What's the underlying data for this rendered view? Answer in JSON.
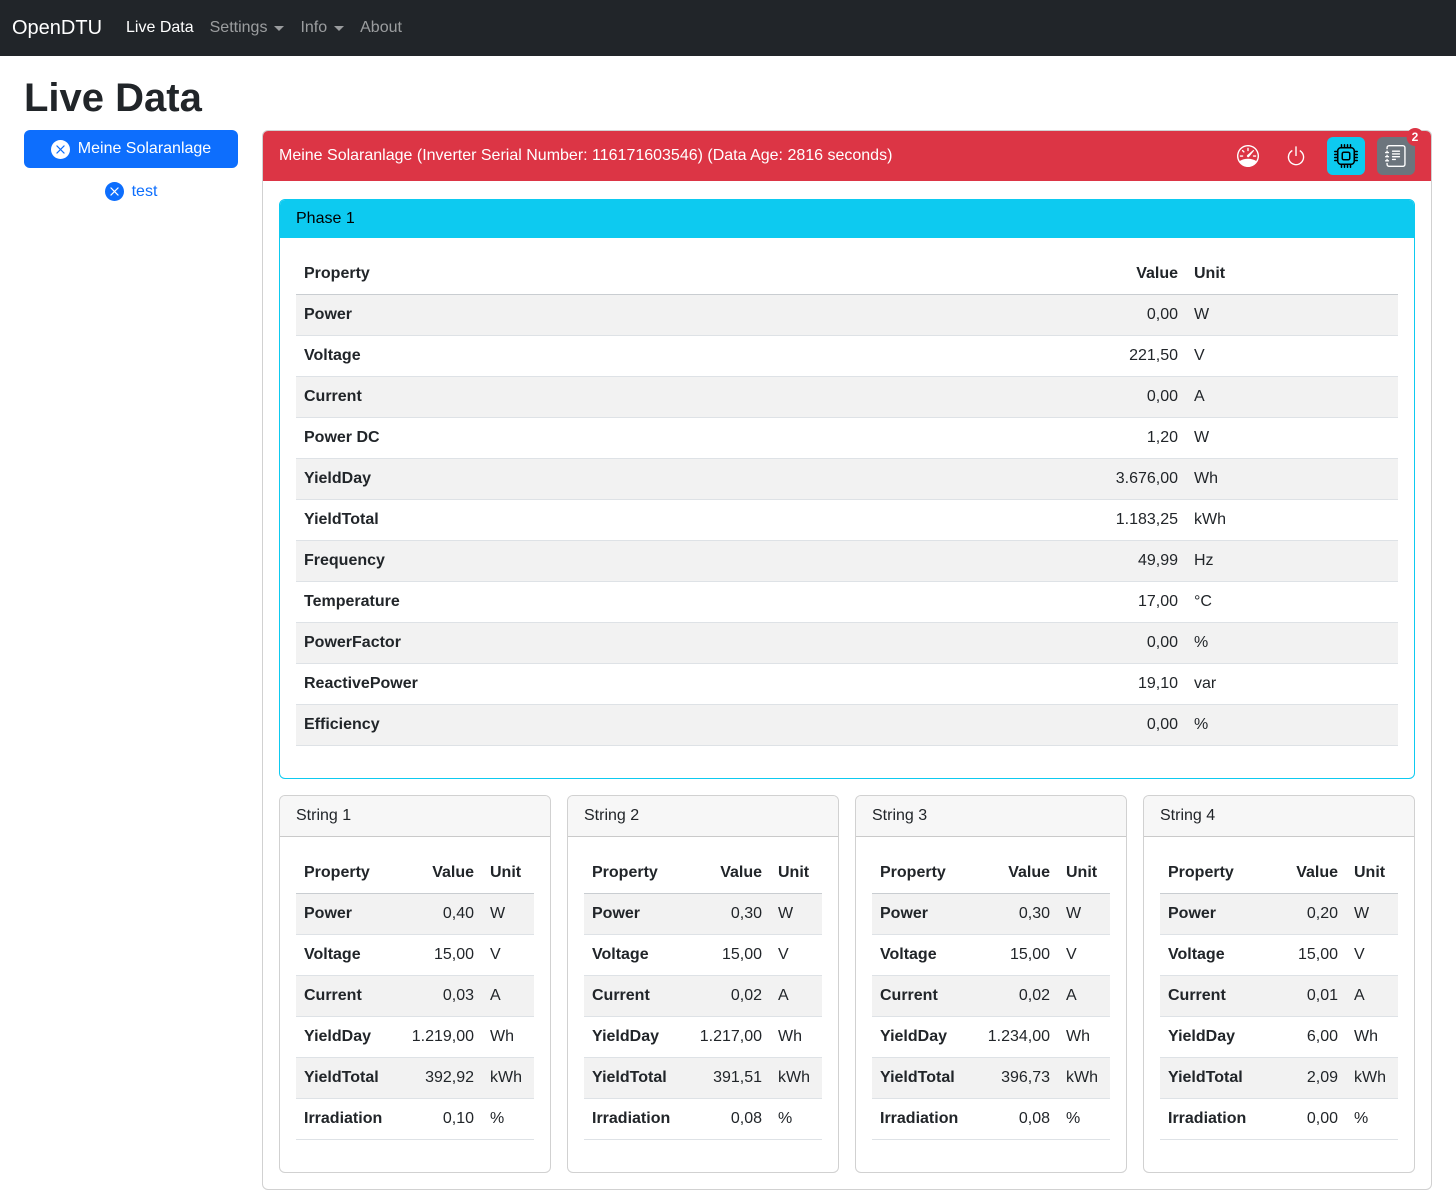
{
  "navbar": {
    "brand": "OpenDTU",
    "items": [
      {
        "label": "Live Data",
        "active": true,
        "dropdown": false
      },
      {
        "label": "Settings",
        "active": false,
        "dropdown": true
      },
      {
        "label": "Info",
        "active": false,
        "dropdown": true
      },
      {
        "label": "About",
        "active": false,
        "dropdown": false
      }
    ]
  },
  "page": {
    "title": "Live Data"
  },
  "inverter_selector": {
    "selected_label": "Meine Solaranlage",
    "other_label": "test"
  },
  "inverter": {
    "header": "Meine Solaranlage (Inverter Serial Number: 116171603546) (Data Age: 2816 seconds)",
    "toolbar": {
      "icons": [
        "speedometer",
        "power",
        "cpu",
        "journal-text"
      ],
      "journal_badge": "2"
    },
    "phase": {
      "title": "Phase 1",
      "columns": [
        "Property",
        "Value",
        "Unit"
      ],
      "rows": [
        [
          "Power",
          "0,00",
          "W"
        ],
        [
          "Voltage",
          "221,50",
          "V"
        ],
        [
          "Current",
          "0,00",
          "A"
        ],
        [
          "Power DC",
          "1,20",
          "W"
        ],
        [
          "YieldDay",
          "3.676,00",
          "Wh"
        ],
        [
          "YieldTotal",
          "1.183,25",
          "kWh"
        ],
        [
          "Frequency",
          "49,99",
          "Hz"
        ],
        [
          "Temperature",
          "17,00",
          "°C"
        ],
        [
          "PowerFactor",
          "0,00",
          "%"
        ],
        [
          "ReactivePower",
          "19,10",
          "var"
        ],
        [
          "Efficiency",
          "0,00",
          "%"
        ]
      ]
    },
    "strings": [
      {
        "title": "String 1",
        "columns": [
          "Property",
          "Value",
          "Unit"
        ],
        "rows": [
          [
            "Power",
            "0,40",
            "W"
          ],
          [
            "Voltage",
            "15,00",
            "V"
          ],
          [
            "Current",
            "0,03",
            "A"
          ],
          [
            "YieldDay",
            "1.219,00",
            "Wh"
          ],
          [
            "YieldTotal",
            "392,92",
            "kWh"
          ],
          [
            "Irradiation",
            "0,10",
            "%"
          ]
        ]
      },
      {
        "title": "String 2",
        "columns": [
          "Property",
          "Value",
          "Unit"
        ],
        "rows": [
          [
            "Power",
            "0,30",
            "W"
          ],
          [
            "Voltage",
            "15,00",
            "V"
          ],
          [
            "Current",
            "0,02",
            "A"
          ],
          [
            "YieldDay",
            "1.217,00",
            "Wh"
          ],
          [
            "YieldTotal",
            "391,51",
            "kWh"
          ],
          [
            "Irradiation",
            "0,08",
            "%"
          ]
        ]
      },
      {
        "title": "String 3",
        "columns": [
          "Property",
          "Value",
          "Unit"
        ],
        "rows": [
          [
            "Power",
            "0,30",
            "W"
          ],
          [
            "Voltage",
            "15,00",
            "V"
          ],
          [
            "Current",
            "0,02",
            "A"
          ],
          [
            "YieldDay",
            "1.234,00",
            "Wh"
          ],
          [
            "YieldTotal",
            "396,73",
            "kWh"
          ],
          [
            "Irradiation",
            "0,08",
            "%"
          ]
        ]
      },
      {
        "title": "String 4",
        "columns": [
          "Property",
          "Value",
          "Unit"
        ],
        "rows": [
          [
            "Power",
            "0,20",
            "W"
          ],
          [
            "Voltage",
            "15,00",
            "V"
          ],
          [
            "Current",
            "0,01",
            "A"
          ],
          [
            "YieldDay",
            "6,00",
            "Wh"
          ],
          [
            "YieldTotal",
            "2,09",
            "kWh"
          ],
          [
            "Irradiation",
            "0,00",
            "%"
          ]
        ]
      }
    ]
  },
  "colors": {
    "navbar_bg": "#212529",
    "primary": "#0d6efd",
    "danger": "#dc3545",
    "info": "#0dcaf0",
    "secondary": "#6c757d"
  }
}
